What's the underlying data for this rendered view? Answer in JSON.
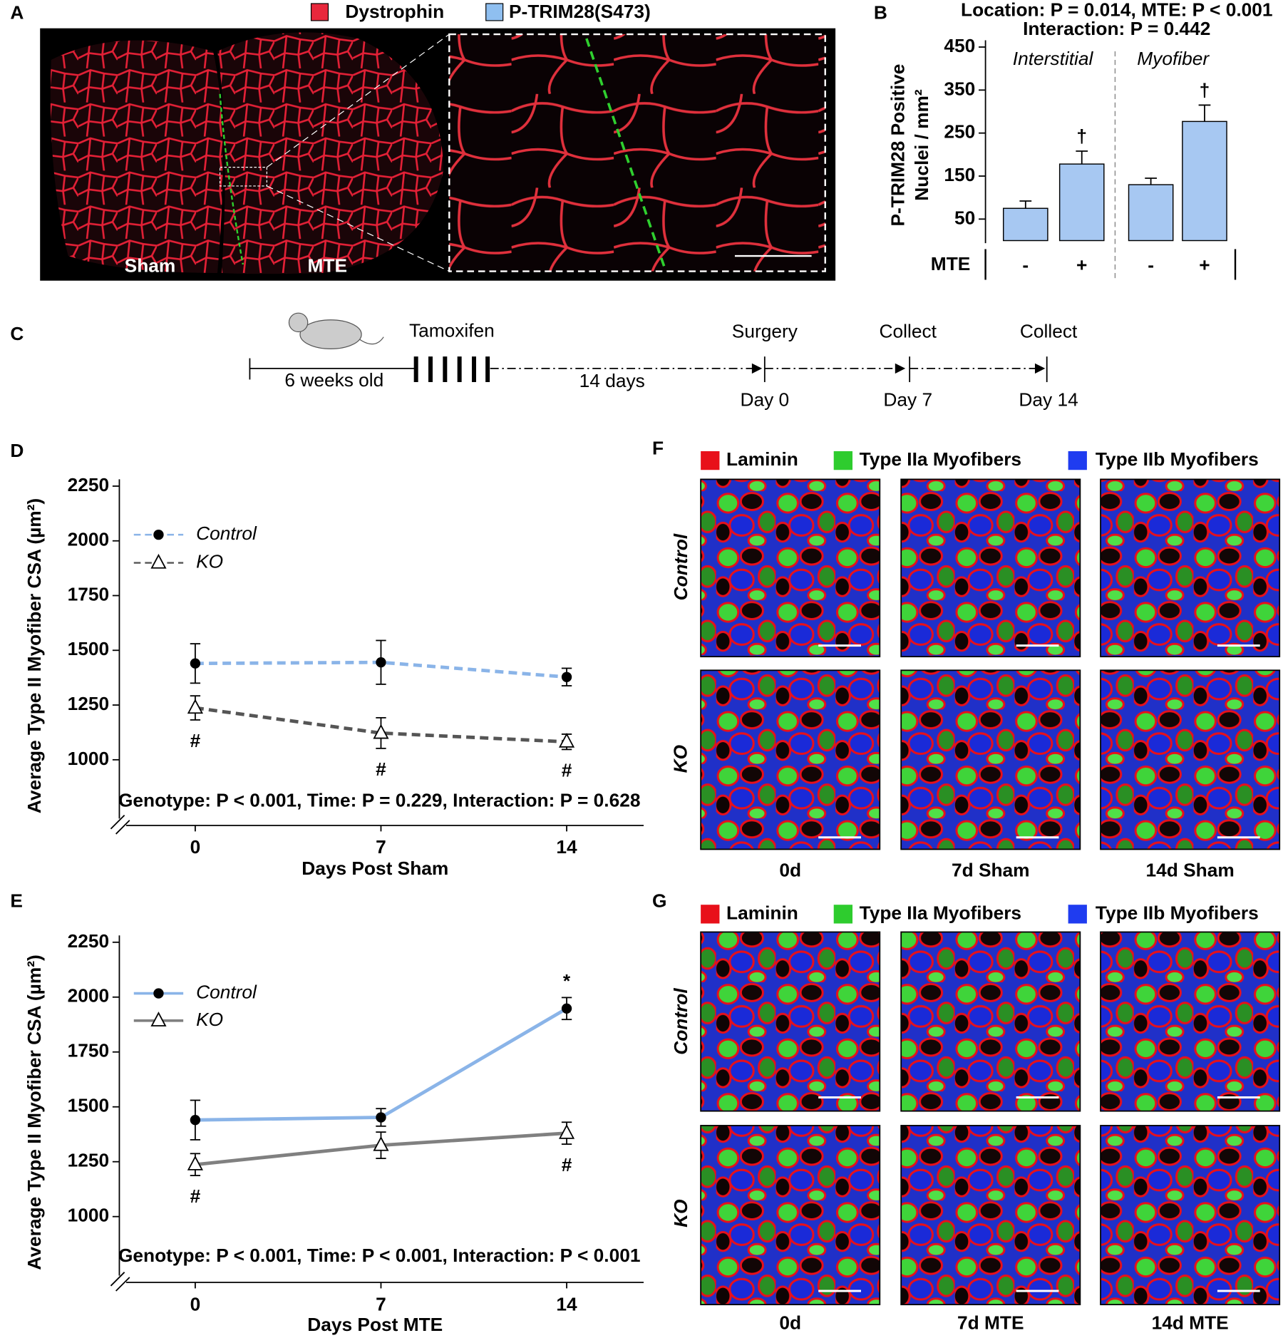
{
  "panel_labels": [
    "A",
    "B",
    "C",
    "D",
    "E",
    "F",
    "G"
  ],
  "panel_a": {
    "legend": [
      "Dystrophin",
      "P-TRIM28(S473)"
    ],
    "legend_colors": [
      "#e8283c",
      "#8fbff0"
    ],
    "labels": [
      "Sham",
      "MTE"
    ]
  },
  "chart_data": [
    {
      "type": "bar",
      "stats": [
        "Location: P = 0.014,  MTE: P < 0.001",
        "Interaction: P = 0.442"
      ],
      "y_label": [
        "P-TRIM28 Positive",
        "Nuclei / mm²"
      ],
      "groups": [
        "Interstitial",
        "Myofiber"
      ],
      "x_label": "MTE",
      "categories": [
        "-",
        "+",
        "-",
        "+"
      ],
      "values": [
        75,
        178,
        130,
        277
      ],
      "errors": [
        17,
        30,
        15,
        38
      ],
      "annotations": [
        null,
        "†",
        null,
        "†"
      ],
      "color": "#a7c8f2",
      "ylim": [
        0,
        450
      ],
      "yticks": [
        50,
        150,
        250,
        350,
        450
      ]
    },
    {
      "type": "line",
      "y_label": "Average Type II Myofiber CSA (µm²)",
      "x_label": "Days Post Sham",
      "stats": "Genotype: P < 0.001,  Time: P = 0.229,   Interaction: P = 0.628",
      "x": [
        0,
        7,
        14
      ],
      "xlim": [
        -2.86,
        16.9
      ],
      "xticks": [
        0,
        7,
        14
      ],
      "ylim": [
        700,
        2250
      ],
      "yticks": [
        1000,
        1250,
        1500,
        1750,
        2000,
        2250
      ],
      "legend": "upper left",
      "dashed": true,
      "series": [
        {
          "name": "Control",
          "color": "#8ab4e8",
          "marker": "circle",
          "values": [
            1440,
            1445,
            1378
          ],
          "errors": [
            90,
            100,
            40
          ],
          "annotations": [
            null,
            null,
            null
          ]
        },
        {
          "name": "KO",
          "color": "#555555",
          "marker": "triangle",
          "values": [
            1237,
            1122,
            1082
          ],
          "errors": [
            55,
            70,
            35
          ],
          "annotations": [
            "#",
            "#",
            "#"
          ]
        }
      ]
    },
    {
      "type": "line",
      "y_label": "Average Type II Myofiber CSA (µm²)",
      "x_label": "Days Post MTE",
      "stats": "Genotype: P < 0.001,  Time: P < 0.001,   Interaction: P < 0.001",
      "x": [
        0,
        7,
        14
      ],
      "xlim": [
        -2.86,
        16.9
      ],
      "xticks": [
        0,
        7,
        14
      ],
      "ylim": [
        700,
        2250
      ],
      "yticks": [
        1000,
        1250,
        1500,
        1750,
        2000,
        2250
      ],
      "legend": "upper left",
      "dashed": false,
      "series": [
        {
          "name": "Control",
          "color": "#8ab4e8",
          "marker": "circle",
          "values": [
            1440,
            1452,
            1948
          ],
          "errors": [
            90,
            40,
            50
          ],
          "annotations": [
            null,
            null,
            "*"
          ]
        },
        {
          "name": "KO",
          "color": "#808080",
          "marker": "triangle",
          "values": [
            1237,
            1325,
            1380
          ],
          "errors": [
            50,
            60,
            50
          ],
          "annotations": [
            "#",
            null,
            "#"
          ]
        }
      ]
    }
  ],
  "panel_c": {
    "tamoxifen": "Tamoxifen",
    "age": "6 weeks old",
    "interval": "14 days",
    "events": [
      {
        "label": "Surgery",
        "day": "Day 0"
      },
      {
        "label": "Collect",
        "day": "Day 7"
      },
      {
        "label": "Collect",
        "day": "Day 14"
      }
    ]
  },
  "panel_f": {
    "legend": [
      "Laminin",
      "Type IIa Myofibers",
      "Type IIb Myofibers"
    ],
    "legend_colors": [
      "#e8101a",
      "#2ecc2e",
      "#1f3cf0"
    ],
    "rows": [
      "Control",
      "KO"
    ],
    "columns": [
      "0d",
      "7d Sham",
      "14d Sham"
    ]
  },
  "panel_g": {
    "legend": [
      "Laminin",
      "Type IIa Myofibers",
      "Type IIb Myofibers"
    ],
    "legend_colors": [
      "#e8101a",
      "#2ecc2e",
      "#1f3cf0"
    ],
    "rows": [
      "Control",
      "KO"
    ],
    "columns": [
      "0d",
      "7d MTE",
      "14d MTE"
    ]
  }
}
